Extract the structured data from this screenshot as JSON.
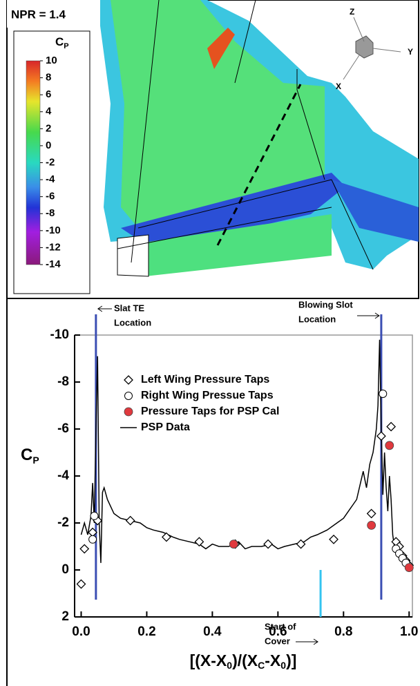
{
  "header": {
    "label": "NPR = 1.4"
  },
  "colorbar": {
    "title": "C",
    "title_sub": "P",
    "range": [
      -14,
      10
    ],
    "ticks": [
      10,
      8,
      6,
      4,
      2,
      0,
      -2,
      -4,
      -6,
      -8,
      -10,
      -12,
      -14
    ]
  },
  "axes_triad": {
    "z": "Z",
    "y": "Y",
    "x": "X"
  },
  "chart_data": {
    "type": "line",
    "ylabel": "C",
    "ylabel_sub": "P",
    "xlabel_parts": [
      {
        "text": "[(X-X"
      },
      {
        "text": "0",
        "sub": true
      },
      {
        "text": ")/(X"
      },
      {
        "text": "C",
        "sub": true
      },
      {
        "text": "-X"
      },
      {
        "text": "0",
        "sub": true
      },
      {
        "text": ")]"
      }
    ],
    "xlim": [
      -0.02,
      1.01
    ],
    "ylim": [
      -10,
      2
    ],
    "y_inverted": true,
    "xticks": [
      {
        "value": 0,
        "label": "0.0"
      },
      0.2,
      0.4,
      0.6,
      0.8,
      {
        "value": 1,
        "label": "1.0"
      }
    ],
    "yticks": [
      -10,
      -8,
      -6,
      -4,
      -2,
      0,
      2
    ],
    "series": [
      {
        "name": "Left Wing Pressure Taps",
        "marker": "diamond",
        "color": "#000000",
        "x": [
          0.0,
          0.01,
          0.035,
          0.05,
          0.15,
          0.26,
          0.36,
          0.47,
          0.57,
          0.67,
          0.77,
          0.885,
          0.915,
          0.945,
          0.96,
          0.97,
          0.98,
          0.99,
          1.0
        ],
        "values": [
          0.6,
          -0.9,
          -1.6,
          -2.1,
          -2.1,
          -1.4,
          -1.2,
          -1.1,
          -1.1,
          -1.1,
          -1.3,
          -2.4,
          -5.7,
          -6.1,
          -1.2,
          -1.0,
          -0.6,
          -0.4,
          -0.2
        ]
      },
      {
        "name": "Right Wing Pressue Taps",
        "marker": "circle",
        "color": "#000000",
        "x": [
          0.035,
          0.04,
          0.92,
          0.96,
          0.97,
          0.98,
          0.99
        ],
        "values": [
          -1.3,
          -2.3,
          -7.5,
          -0.9,
          -0.7,
          -0.5,
          -0.3
        ]
      },
      {
        "name": "Pressure Taps for PSP Cal",
        "marker": "filled-circle",
        "color": "#e0393e",
        "x": [
          0.465,
          0.885,
          0.94,
          1.0
        ],
        "values": [
          -1.1,
          -1.9,
          -5.3,
          -0.1
        ]
      },
      {
        "name": "PSP Data",
        "marker": "line",
        "color": "#000000",
        "x": [
          0.0,
          0.01,
          0.02,
          0.03,
          0.035,
          0.04,
          0.045,
          0.05,
          0.055,
          0.06,
          0.065,
          0.07,
          0.08,
          0.1,
          0.12,
          0.15,
          0.18,
          0.2,
          0.22,
          0.25,
          0.28,
          0.3,
          0.33,
          0.36,
          0.38,
          0.4,
          0.42,
          0.45,
          0.48,
          0.5,
          0.52,
          0.55,
          0.58,
          0.6,
          0.62,
          0.65,
          0.68,
          0.7,
          0.72,
          0.75,
          0.78,
          0.8,
          0.82,
          0.84,
          0.85,
          0.86,
          0.87,
          0.88,
          0.89,
          0.9,
          0.905,
          0.91,
          0.915,
          0.92,
          0.925,
          0.93,
          0.935,
          0.94,
          0.945,
          0.95,
          0.955,
          0.96,
          0.97,
          0.98,
          0.99,
          1.0
        ],
        "values": [
          -1.5,
          -2.0,
          -1.5,
          -2.3,
          -3.7,
          -2.0,
          -6,
          -9.1,
          -2,
          -0.3,
          -3.3,
          -3.5,
          -3.0,
          -2.4,
          -2.2,
          -2.1,
          -2.0,
          -1.8,
          -1.7,
          -1.6,
          -1.4,
          -1.3,
          -1.2,
          -1.1,
          -0.9,
          -1.1,
          -1.0,
          -1.0,
          -1.2,
          -0.9,
          -1.0,
          -1.0,
          -1.1,
          -0.9,
          -1.0,
          -1.1,
          -1.2,
          -1.4,
          -1.5,
          -1.7,
          -2.0,
          -2.2,
          -2.6,
          -3.0,
          -3.6,
          -4.2,
          -3.5,
          -4.5,
          -5.0,
          -6,
          -7,
          -9.8,
          -6,
          -3.2,
          -5,
          -3.5,
          -2.5,
          -4.0,
          -3.0,
          -1.5,
          -1.0,
          -0.8,
          -0.6,
          -0.5,
          -0.3,
          -0.1
        ]
      }
    ],
    "vlines": [
      {
        "x": 0.045,
        "color": "#3b4eb3",
        "label": [
          "Slat TE",
          "Location"
        ]
      },
      {
        "x": 0.915,
        "color": "#3b4eb3",
        "label": [
          "Blowing Slot",
          "Location"
        ]
      },
      {
        "x": 0.73,
        "color": "#35c4f0",
        "y_range": [
          0,
          2
        ],
        "label": [
          "Start of",
          "Cover"
        ]
      }
    ]
  }
}
